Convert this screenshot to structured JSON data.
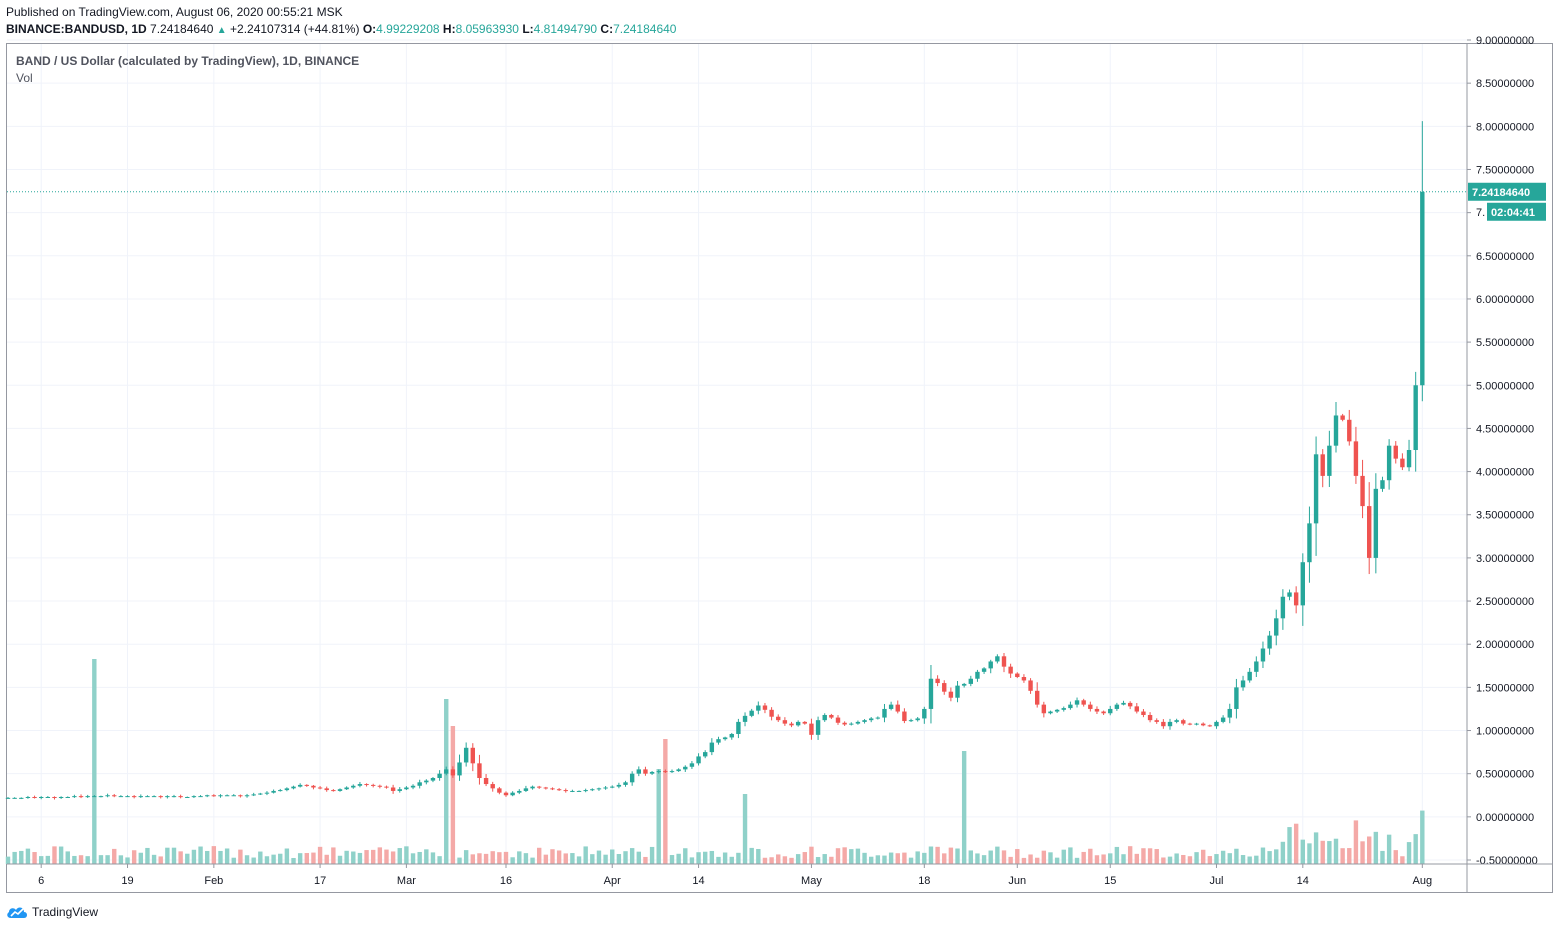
{
  "header": {
    "published": "Published on TradingView.com, August 06, 2020 00:55:21 MSK",
    "symbol": "BINANCE:BANDUSD, 1D",
    "last": "7.24184640",
    "change": "+2.24107314 (+44.81%)",
    "o_label": "O:",
    "o_value": "4.99229208",
    "h_label": "H:",
    "h_value": "8.05963930",
    "l_label": "L:",
    "l_value": "4.81494790",
    "c_label": "C:",
    "c_value": "7.24184640"
  },
  "legend": {
    "title": "BAND / US Dollar (calculated by TradingView), 1D, BINANCE",
    "vol": "Vol"
  },
  "footer": {
    "brand": "TradingView"
  },
  "price_badge": {
    "price": "7.24184640",
    "countdown": "02:04:41",
    "partial_label": "7."
  },
  "colors": {
    "up": "#26a69a",
    "down": "#ef5350",
    "up_vol": "#8fd1c9",
    "down_vol": "#f4a9a7",
    "grid": "#f0f3fa"
  },
  "chart_data": {
    "type": "candlestick",
    "title": "BAND / US Dollar (calculated by TradingView), 1D, BINANCE",
    "y_range": [
      -0.5,
      9.0
    ],
    "y_ticks": [
      "9.00000000",
      "8.50000000",
      "8.00000000",
      "7.50000000",
      "7.24184640",
      "7.",
      "6.50000000",
      "6.00000000",
      "5.50000000",
      "5.00000000",
      "4.50000000",
      "4.00000000",
      "3.50000000",
      "3.00000000",
      "2.50000000",
      "2.00000000",
      "1.50000000",
      "1.00000000",
      "0.50000000",
      "0.00000000",
      "-0.50000000"
    ],
    "x_ticks": [
      "6",
      "19",
      "Feb",
      "17",
      "Mar",
      "16",
      "Apr",
      "14",
      "May",
      "18",
      "Jun",
      "15",
      "Jul",
      "14",
      "Aug"
    ],
    "x_tick_days": [
      5,
      18,
      31,
      47,
      60,
      75,
      91,
      104,
      121,
      138,
      152,
      166,
      182,
      195,
      213
    ],
    "first_day": "2020-01-01",
    "closes": [
      0.22,
      0.22,
      0.22,
      0.23,
      0.22,
      0.23,
      0.23,
      0.22,
      0.23,
      0.23,
      0.24,
      0.23,
      0.24,
      0.24,
      0.24,
      0.25,
      0.24,
      0.24,
      0.24,
      0.23,
      0.24,
      0.24,
      0.24,
      0.23,
      0.24,
      0.24,
      0.23,
      0.23,
      0.24,
      0.24,
      0.25,
      0.24,
      0.25,
      0.25,
      0.25,
      0.24,
      0.25,
      0.26,
      0.27,
      0.28,
      0.3,
      0.31,
      0.33,
      0.35,
      0.37,
      0.36,
      0.34,
      0.33,
      0.31,
      0.3,
      0.32,
      0.34,
      0.36,
      0.38,
      0.37,
      0.36,
      0.35,
      0.34,
      0.3,
      0.32,
      0.34,
      0.36,
      0.4,
      0.42,
      0.45,
      0.5,
      0.55,
      0.48,
      0.63,
      0.8,
      0.62,
      0.45,
      0.38,
      0.33,
      0.28,
      0.25,
      0.28,
      0.3,
      0.33,
      0.35,
      0.34,
      0.33,
      0.32,
      0.31,
      0.3,
      0.3,
      0.3,
      0.31,
      0.32,
      0.33,
      0.34,
      0.35,
      0.37,
      0.4,
      0.5,
      0.55,
      0.5,
      0.52,
      0.53,
      0.52,
      0.53,
      0.55,
      0.58,
      0.62,
      0.7,
      0.75,
      0.86,
      0.9,
      0.92,
      0.96,
      1.1,
      1.17,
      1.23,
      1.29,
      1.24,
      1.16,
      1.12,
      1.08,
      1.06,
      1.1,
      1.08,
      0.95,
      1.12,
      1.18,
      1.15,
      1.09,
      1.07,
      1.08,
      1.1,
      1.12,
      1.14,
      1.15,
      1.25,
      1.3,
      1.22,
      1.11,
      1.12,
      1.14,
      1.25,
      1.6,
      1.55,
      1.45,
      1.38,
      1.52,
      1.54,
      1.6,
      1.68,
      1.72,
      1.8,
      1.86,
      1.74,
      1.66,
      1.62,
      1.58,
      1.46,
      1.3,
      1.2,
      1.22,
      1.24,
      1.26,
      1.3,
      1.35,
      1.3,
      1.25,
      1.22,
      1.2,
      1.25,
      1.3,
      1.32,
      1.28,
      1.22,
      1.18,
      1.12,
      1.1,
      1.05,
      1.1,
      1.12,
      1.08,
      1.07,
      1.08,
      1.06,
      1.05,
      1.1,
      1.15,
      1.25,
      1.5,
      1.58,
      1.68,
      1.8,
      1.95,
      2.1,
      2.3,
      2.55,
      2.6,
      2.45,
      2.95,
      3.4,
      4.2,
      3.95,
      4.3,
      4.65,
      4.6,
      4.35,
      3.95,
      3.6,
      3.0,
      3.8,
      3.9,
      4.3,
      4.15,
      4.05,
      4.25,
      5.0,
      7.24
    ],
    "volume_max_label_note": ""
  }
}
